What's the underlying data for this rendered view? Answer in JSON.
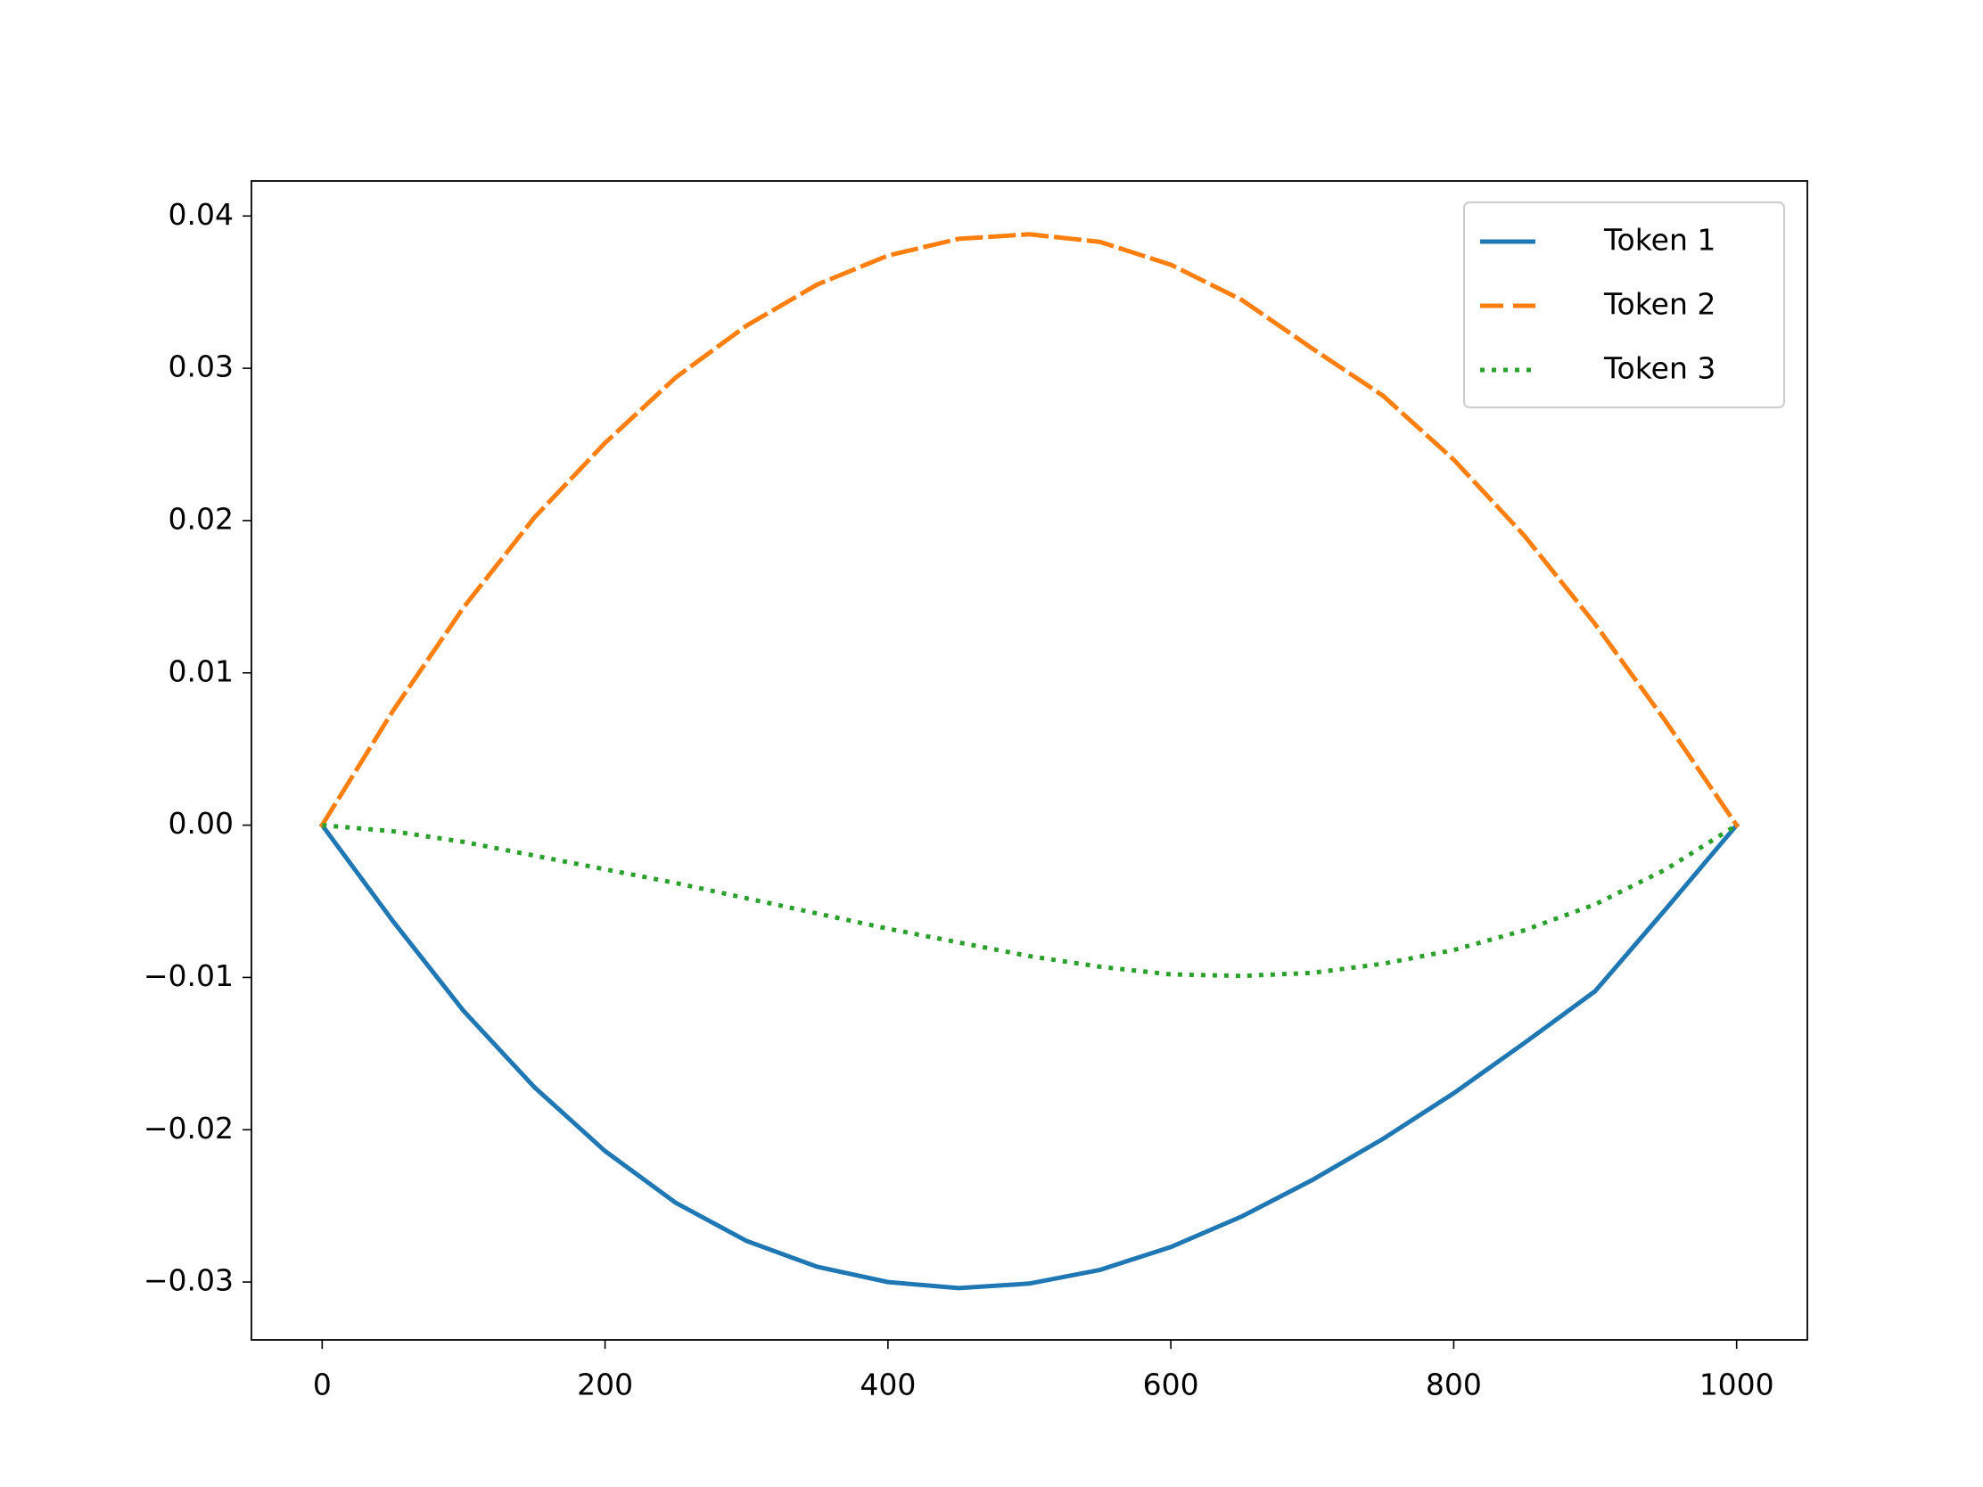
{
  "chart_data": {
    "type": "line",
    "x": [
      0,
      50,
      100,
      150,
      200,
      250,
      300,
      350,
      400,
      450,
      500,
      550,
      600,
      650,
      700,
      750,
      800,
      850,
      900,
      950,
      1000
    ],
    "series": [
      {
        "name": "Token 1",
        "color": "#1f77b4",
        "linestyle": "solid",
        "values": [
          0,
          -0.0063,
          -0.0122,
          -0.0172,
          -0.0214,
          -0.0248,
          -0.0273,
          -0.029,
          -0.03,
          -0.0304,
          -0.0301,
          -0.0292,
          -0.0277,
          -0.0257,
          -0.0233,
          -0.0206,
          -0.0176,
          -0.0143,
          -0.0109,
          -0.0055,
          0
        ]
      },
      {
        "name": "Token 2",
        "color": "#ff7f0e",
        "linestyle": "dashed",
        "values": [
          0,
          0.0075,
          0.0143,
          0.0202,
          0.0251,
          0.0294,
          0.0328,
          0.0355,
          0.0374,
          0.0385,
          0.0388,
          0.0383,
          0.0368,
          0.0345,
          0.0313,
          0.0282,
          0.024,
          0.019,
          0.0132,
          0.0068,
          0
        ]
      },
      {
        "name": "Token 3",
        "color": "#2ca02c",
        "linestyle": "dotted",
        "values": [
          0,
          -0.0004,
          -0.0011,
          -0.002,
          -0.0029,
          -0.0038,
          -0.0048,
          -0.0058,
          -0.0068,
          -0.0077,
          -0.0086,
          -0.0093,
          -0.0098,
          -0.0099,
          -0.0097,
          -0.0091,
          -0.0082,
          -0.0069,
          -0.0052,
          -0.0029,
          0
        ]
      }
    ],
    "xlim": [
      -50,
      1050
    ],
    "ylim": [
      -0.0338,
      0.0423
    ],
    "xticks": [
      0,
      200,
      400,
      600,
      800,
      1000
    ],
    "yticks": [
      {
        "value": -0.03,
        "label": "−0.03"
      },
      {
        "value": -0.02,
        "label": "−0.02"
      },
      {
        "value": -0.01,
        "label": "−0.01"
      },
      {
        "value": 0,
        "label": "0.00"
      },
      {
        "value": 0.01,
        "label": "0.01"
      },
      {
        "value": 0.02,
        "label": "0.02"
      },
      {
        "value": 0.03,
        "label": "0.03"
      },
      {
        "value": 0.04,
        "label": "0.04"
      }
    ],
    "grid": false,
    "legend": "upper right"
  }
}
